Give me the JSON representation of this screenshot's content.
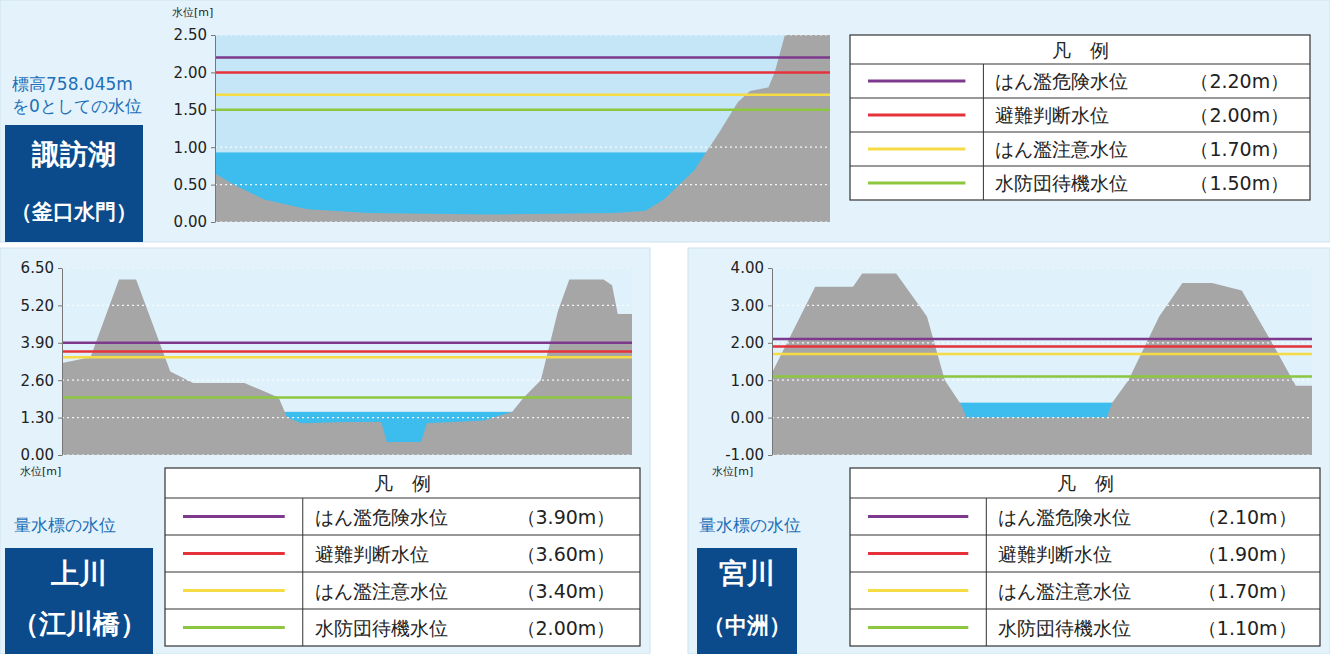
{
  "chart_data": [
    {
      "type": "cross_section",
      "title": [
        "諏訪湖",
        "（釜口水門）"
      ],
      "subtitle": [
        "標高758.045m",
        "を0としての水位"
      ],
      "y_label": "水位[m]",
      "xlim": [
        0,
        100
      ],
      "ylim": [
        0,
        2.5
      ],
      "yticks": [
        {
          "value": 0,
          "label": "0.00"
        },
        {
          "value": 0.5,
          "label": "0.50"
        },
        {
          "value": 1,
          "label": "1.00"
        },
        {
          "value": 1.5,
          "label": "1.50"
        },
        {
          "value": 2,
          "label": "2.00"
        },
        {
          "value": 2.5,
          "label": "2.50"
        }
      ],
      "grid": true,
      "tick_labels": "y",
      "legend": "right",
      "legend_title": "凡　例",
      "terrain": {
        "color": "#a6a6a6",
        "x": [
          0,
          3,
          8,
          15,
          25,
          45,
          65,
          70,
          73,
          78,
          82,
          85,
          87,
          90,
          91,
          93,
          100
        ],
        "y": [
          0.65,
          0.5,
          0.3,
          0.17,
          0.12,
          0.1,
          0.12,
          0.15,
          0.3,
          0.7,
          1.2,
          1.6,
          1.75,
          1.8,
          2.0,
          2.6,
          2.8
        ]
      },
      "water": {
        "level": 0.93,
        "color": "#3cbdee"
      },
      "series": [
        {
          "name": "はん濫危険水位",
          "type": "hline",
          "color": "#7d3a8c",
          "values": [
            2.2
          ],
          "value_labels": [
            "（2.20m）"
          ]
        },
        {
          "name": "避難判断水位",
          "type": "hline",
          "color": "#e5323a",
          "values": [
            2.0
          ],
          "value_labels": [
            "（2.00m）"
          ]
        },
        {
          "name": "はん濫注意水位",
          "type": "hline",
          "color": "#f5dc45",
          "values": [
            1.7
          ],
          "value_labels": [
            "（1.70m）"
          ]
        },
        {
          "name": "水防団待機水位",
          "type": "hline",
          "color": "#8dc63f",
          "values": [
            1.5
          ],
          "value_labels": [
            "（1.50m）"
          ]
        }
      ]
    },
    {
      "type": "cross_section",
      "title": [
        "上川",
        "（江川橋）"
      ],
      "subtitle": [
        "量水標の水位"
      ],
      "y_label": "水位[m]",
      "xlim": [
        0,
        100
      ],
      "ylim": [
        0,
        6.5
      ],
      "yticks": [
        {
          "value": 0,
          "label": "0.00"
        },
        {
          "value": 1.3,
          "label": "1.30"
        },
        {
          "value": 2.6,
          "label": "2.60"
        },
        {
          "value": 3.9,
          "label": "3.90"
        },
        {
          "value": 5.2,
          "label": "5.20"
        },
        {
          "value": 6.5,
          "label": "6.50"
        }
      ],
      "grid": true,
      "tick_labels": "y",
      "legend": "bottom",
      "legend_title": "凡　例",
      "terrain": {
        "color": "#a6a6a6",
        "x": [
          0,
          5,
          10,
          13,
          19,
          23,
          32,
          38,
          39.5,
          42,
          50,
          56,
          57,
          63,
          64,
          74,
          79,
          81,
          84,
          87,
          89,
          95,
          96.5,
          97.5,
          100
        ],
        "y": [
          3.2,
          3.4,
          6.1,
          6.1,
          2.9,
          2.5,
          2.5,
          2.0,
          1.3,
          1.1,
          1.15,
          1.15,
          0.45,
          0.45,
          1.1,
          1.2,
          1.5,
          2.0,
          2.6,
          5.0,
          6.1,
          6.1,
          5.9,
          4.9,
          4.9
        ]
      },
      "water": {
        "level": 1.5,
        "color": "#3cbdee"
      },
      "series": [
        {
          "name": "はん濫危険水位",
          "type": "hline",
          "color": "#7d3a8c",
          "values": [
            3.9
          ],
          "value_labels": [
            "（3.90m）"
          ]
        },
        {
          "name": "避難判断水位",
          "type": "hline",
          "color": "#e5323a",
          "values": [
            3.6
          ],
          "value_labels": [
            "（3.60m）"
          ]
        },
        {
          "name": "はん濫注意水位",
          "type": "hline",
          "color": "#f5dc45",
          "values": [
            3.4
          ],
          "value_labels": [
            "（3.40m）"
          ]
        },
        {
          "name": "水防団待機水位",
          "type": "hline",
          "color": "#8dc63f",
          "values": [
            2.0
          ],
          "value_labels": [
            "（2.00m）"
          ]
        }
      ]
    },
    {
      "type": "cross_section",
      "title": [
        "宮川",
        "（中洲）"
      ],
      "subtitle": [
        "量水標の水位"
      ],
      "y_label": "水位[m]",
      "xlim": [
        0,
        100
      ],
      "ylim": [
        -1,
        4
      ],
      "yticks": [
        {
          "value": -1,
          "label": "-1.00"
        },
        {
          "value": 0,
          "label": "0.00"
        },
        {
          "value": 1,
          "label": "1.00"
        },
        {
          "value": 2,
          "label": "2.00"
        },
        {
          "value": 3,
          "label": "3.00"
        },
        {
          "value": 4,
          "label": "4.00"
        }
      ],
      "grid": true,
      "tick_labels": "y",
      "legend": "bottom",
      "legend_title": "凡　例",
      "terrain": {
        "color": "#a6a6a6",
        "x": [
          0,
          8,
          15,
          16.7,
          23,
          28.7,
          32,
          35,
          36,
          62,
          63,
          66,
          71.7,
          76,
          81.5,
          87,
          92.6,
          97,
          100
        ],
        "y": [
          1.2,
          3.5,
          3.5,
          3.85,
          3.85,
          2.7,
          1.0,
          0.35,
          0.0,
          0.0,
          0.4,
          1.0,
          2.7,
          3.6,
          3.6,
          3.4,
          2.0,
          0.85,
          0.85
        ]
      },
      "water": {
        "level": 0.4,
        "color": "#3cbdee"
      },
      "series": [
        {
          "name": "はん濫危険水位",
          "type": "hline",
          "color": "#7d3a8c",
          "values": [
            2.1
          ],
          "value_labels": [
            "（2.10m）"
          ]
        },
        {
          "name": "避難判断水位",
          "type": "hline",
          "color": "#e5323a",
          "values": [
            1.9
          ],
          "value_labels": [
            "（1.90m）"
          ]
        },
        {
          "name": "はん濫注意水位",
          "type": "hline",
          "color": "#f5dc45",
          "values": [
            1.7
          ],
          "value_labels": [
            "（1.70m）"
          ]
        },
        {
          "name": "水防団待機水位",
          "type": "hline",
          "color": "#8dc63f",
          "values": [
            1.1
          ],
          "value_labels": [
            "（1.10m）"
          ]
        }
      ]
    }
  ]
}
